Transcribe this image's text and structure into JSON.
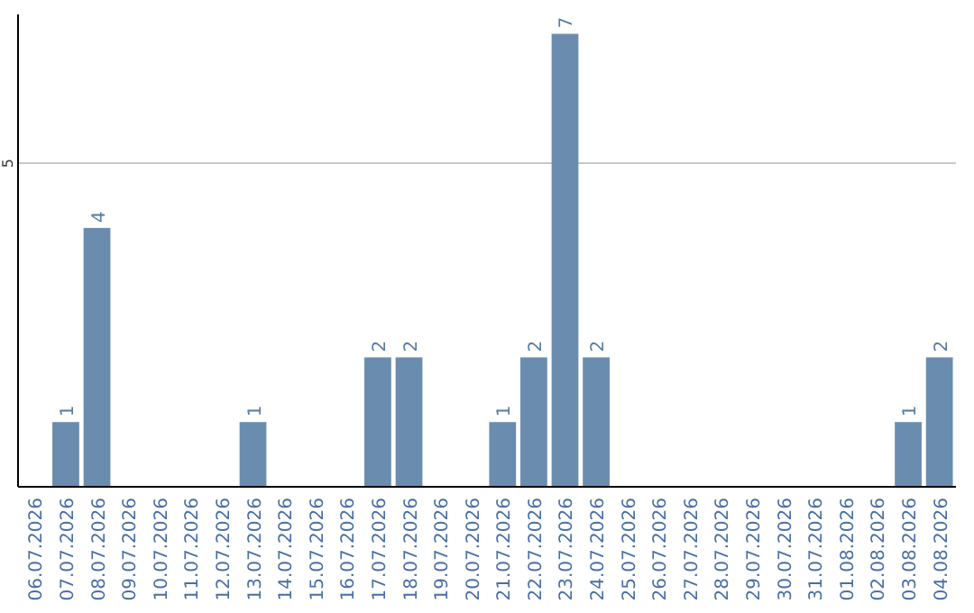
{
  "chart_data": {
    "type": "bar",
    "categories": [
      "06.07.2026",
      "07.07.2026",
      "08.07.2026",
      "09.07.2026",
      "10.07.2026",
      "11.07.2026",
      "12.07.2026",
      "13.07.2026",
      "14.07.2026",
      "15.07.2026",
      "16.07.2026",
      "17.07.2026",
      "18.07.2026",
      "19.07.2026",
      "20.07.2026",
      "21.07.2026",
      "22.07.2026",
      "23.07.2026",
      "24.07.2026",
      "25.07.2026",
      "26.07.2026",
      "27.07.2026",
      "28.07.2026",
      "29.07.2026",
      "30.07.2026",
      "31.07.2026",
      "01.08.2026",
      "02.08.2026",
      "03.08.2026",
      "04.08.2026"
    ],
    "values": [
      0,
      1,
      4,
      0,
      0,
      0,
      0,
      1,
      0,
      0,
      0,
      2,
      2,
      0,
      0,
      1,
      2,
      7,
      2,
      0,
      0,
      0,
      0,
      0,
      0,
      0,
      0,
      0,
      1,
      2
    ],
    "value_labels": [
      null,
      "1",
      "4",
      null,
      null,
      null,
      null,
      "1",
      null,
      null,
      null,
      "2",
      "2",
      null,
      null,
      "1",
      "2",
      "7",
      "2",
      null,
      null,
      null,
      null,
      null,
      null,
      null,
      null,
      null,
      "1",
      "2"
    ],
    "color": "#6a8caf",
    "ylim": [
      0,
      7.3
    ],
    "yticks": [
      5
    ],
    "grid": "y"
  }
}
